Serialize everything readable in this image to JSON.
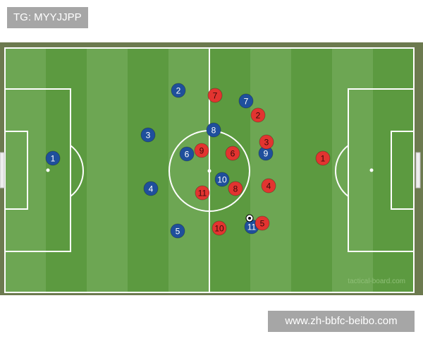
{
  "header": {
    "tg_label": "TG: MYYJJPP"
  },
  "footer": {
    "site_label": "www.zh-bbfc-beibo.com"
  },
  "board": {
    "watermark": "tactical-board.com",
    "colors": {
      "border": "#6c7a4f",
      "stripe_light": "#6da653",
      "stripe_dark": "#5c9a40",
      "lines": "#ffffff",
      "blue_team": "#1f4f9c",
      "red_team": "#e23430"
    },
    "blue_team": [
      "1",
      "2",
      "3",
      "4",
      "5",
      "6",
      "7",
      "8",
      "9",
      "10",
      "11"
    ],
    "red_team": [
      "1",
      "2",
      "3",
      "4",
      "5",
      "6",
      "7",
      "8",
      "9",
      "10",
      "11"
    ],
    "ball_icon": "soccer-ball-icon"
  }
}
